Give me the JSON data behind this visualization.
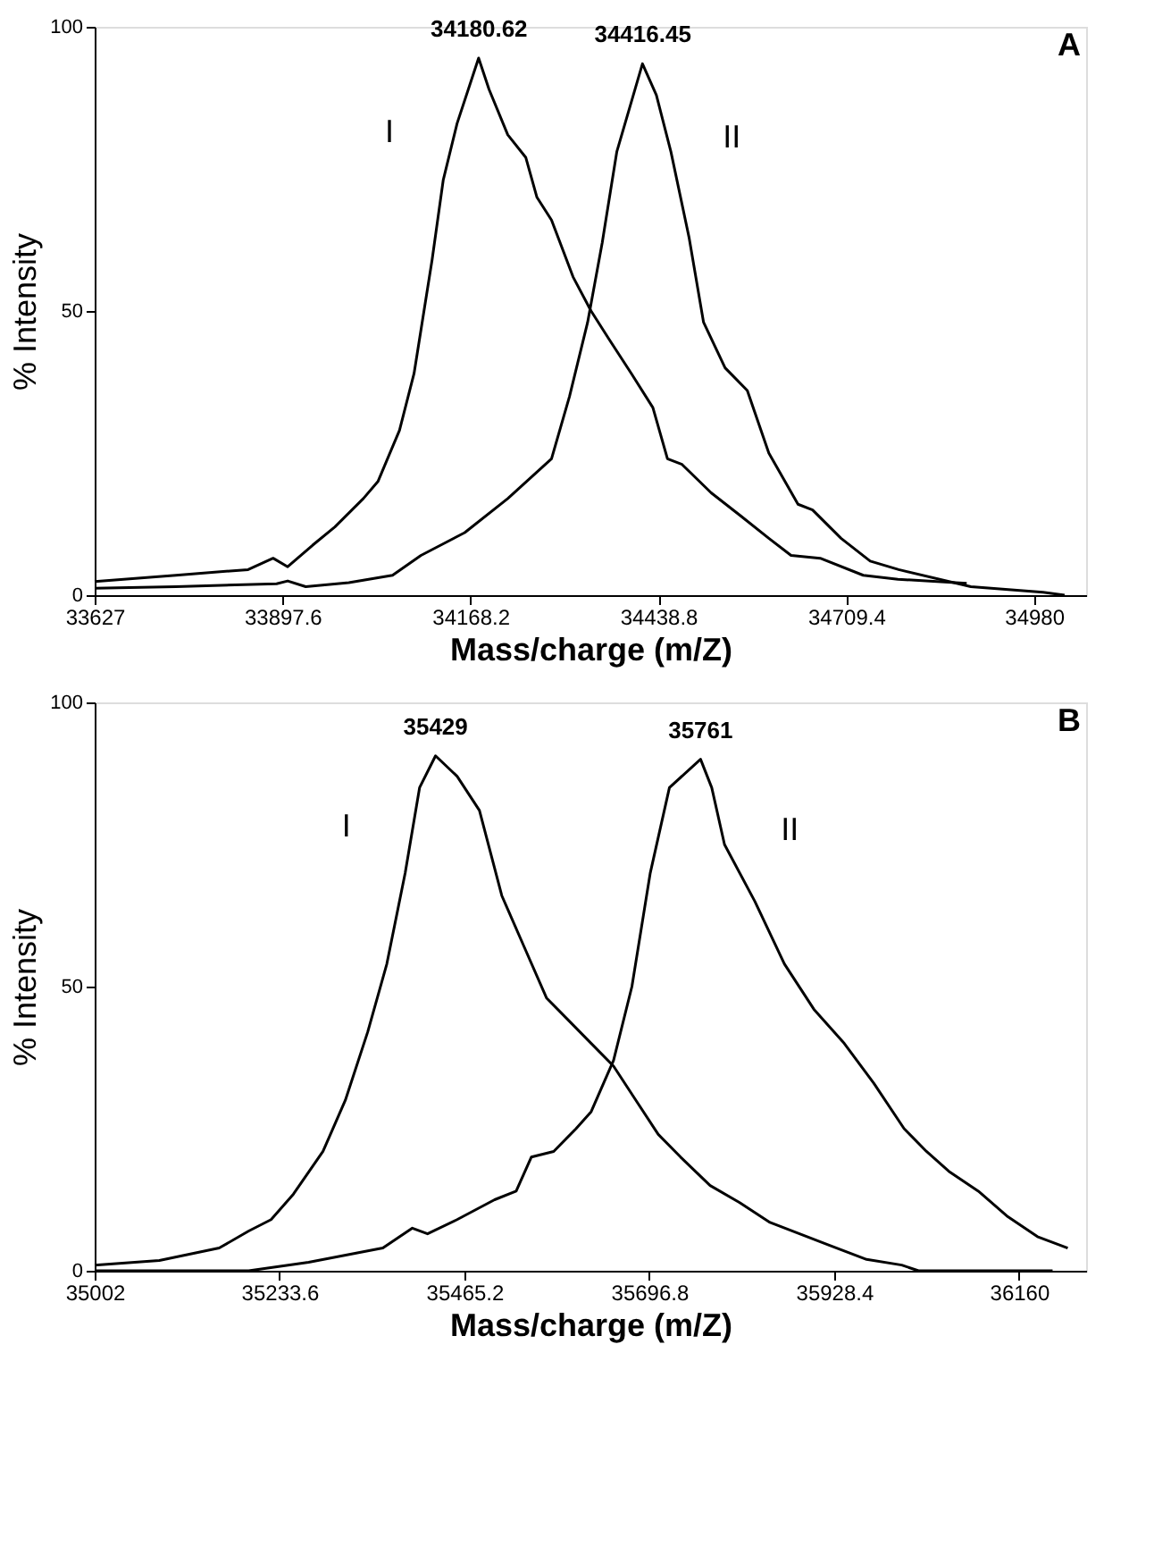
{
  "chart_data": [
    {
      "type": "line",
      "title": "A",
      "xlabel": "Mass/charge (m/Z)",
      "ylabel": "% Intensity",
      "xlim": [
        33627,
        35055
      ],
      "xticks": [
        33627,
        33897.6,
        34168.2,
        34438.8,
        34709.4,
        34980
      ],
      "ylim": [
        0,
        100
      ],
      "yticks": [
        0,
        50,
        100
      ],
      "grid": false,
      "legend": false,
      "line_style": "solid",
      "annotations": [
        {
          "text": "34180.62",
          "x": 34180.62,
          "y": 94.5
        },
        {
          "text": "34416.45",
          "x": 34416.45,
          "y": 93.5
        }
      ],
      "series": [
        {
          "name": "I",
          "color": "#000000",
          "x": [
            33627,
            33744,
            33848,
            33884,
            33905,
            33941,
            33973,
            34014,
            34035,
            34066,
            34087,
            34113,
            34129,
            34149,
            34180,
            34195,
            34222,
            34248,
            34264,
            34285,
            34316,
            34342,
            34368,
            34400,
            34431,
            34452,
            34473,
            34515,
            34557,
            34598,
            34630,
            34672,
            34734,
            34784,
            34883
          ],
          "values": [
            2.4,
            3.5,
            4.5,
            6.5,
            5,
            8.8,
            12,
            17,
            20,
            29,
            39,
            59,
            73,
            83,
            94.5,
            89,
            81,
            77,
            70,
            66,
            56,
            50,
            45,
            39,
            33,
            24,
            23,
            18,
            14,
            10,
            7,
            6.5,
            3.5,
            2.8,
            2.1
          ]
        },
        {
          "name": "II",
          "color": "#000000",
          "x": [
            33627,
            33744,
            33889,
            33905,
            33931,
            33993,
            34056,
            34097,
            34160,
            34222,
            34285,
            34311,
            34337,
            34358,
            34379,
            34416,
            34436,
            34457,
            34483,
            34504,
            34535,
            34567,
            34598,
            34640,
            34661,
            34702,
            34744,
            34785,
            34889,
            34993,
            35024
          ],
          "values": [
            1.2,
            1.5,
            2,
            2.5,
            1.5,
            2.2,
            3.5,
            7,
            11,
            17,
            24,
            35,
            48,
            62,
            78,
            93.5,
            88,
            78,
            63,
            48,
            40,
            36,
            25,
            16,
            15,
            10,
            6,
            4.5,
            1.5,
            0.5,
            0
          ]
        }
      ]
    },
    {
      "type": "line",
      "title": "B",
      "xlabel": "Mass/charge (m/Z)",
      "ylabel": "% Intensity",
      "xlim": [
        35002,
        36244
      ],
      "xticks": [
        35002,
        35233.6,
        35465.2,
        35696.8,
        35928.4,
        36160
      ],
      "ylim": [
        0,
        100
      ],
      "yticks": [
        0,
        50,
        100
      ],
      "grid": false,
      "legend": false,
      "line_style": "solid",
      "annotations": [
        {
          "text": "35429",
          "x": 35429,
          "y": 90.6
        },
        {
          "text": "35761",
          "x": 35761,
          "y": 90
        }
      ],
      "series": [
        {
          "name": "I",
          "color": "#000000",
          "x": [
            35002,
            35083,
            35158,
            35195,
            35223,
            35251,
            35288,
            35316,
            35344,
            35368,
            35391,
            35409,
            35429,
            35456,
            35484,
            35512,
            35540,
            35568,
            35596,
            35624,
            35652,
            35680,
            35708,
            35736,
            35773,
            35810,
            35848,
            35885,
            35922,
            35969,
            36013,
            36034,
            36202
          ],
          "values": [
            1,
            1.8,
            4,
            7,
            9,
            13.5,
            21,
            30,
            42,
            54,
            70,
            85,
            90.6,
            87,
            81,
            66,
            57,
            48,
            44,
            40,
            36,
            30,
            24,
            20,
            15,
            12,
            8.5,
            6.5,
            4.5,
            2,
            1,
            0,
            0
          ]
        },
        {
          "name": "II",
          "color": "#000000",
          "x": [
            35002,
            35195,
            35270,
            35363,
            35400,
            35419,
            35456,
            35503,
            35530,
            35549,
            35577,
            35605,
            35624,
            35652,
            35675,
            35698,
            35722,
            35761,
            35775,
            35791,
            35829,
            35866,
            35903,
            35941,
            35978,
            36016,
            36044,
            36072,
            36109,
            36146,
            36183,
            36221
          ],
          "values": [
            0,
            0,
            1.5,
            4,
            7.5,
            6.5,
            9,
            12.5,
            14,
            20,
            21,
            25,
            28,
            37,
            50,
            70,
            85,
            90,
            85,
            75,
            65,
            54,
            46,
            40,
            33,
            25,
            21,
            17.5,
            14,
            9.5,
            6,
            4
          ]
        }
      ]
    }
  ]
}
